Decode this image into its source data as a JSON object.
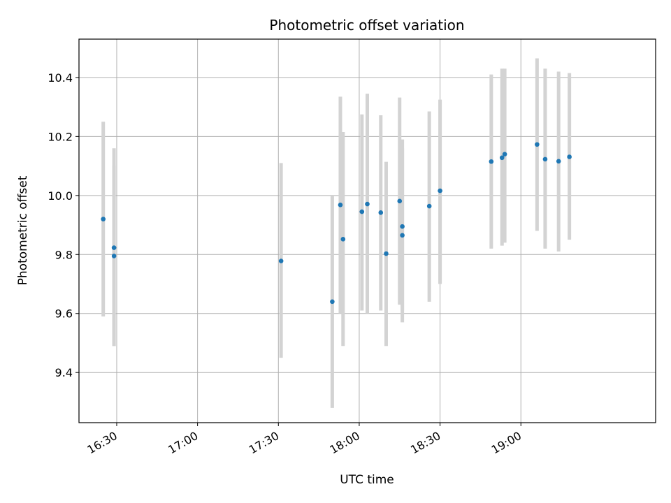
{
  "chart_data": {
    "type": "scatter",
    "title": "Photometric offset variation",
    "xlabel": "UTC time",
    "ylabel": "Photometric offset",
    "x_unit": "time of day (HH:MM, UTC)",
    "xlim": [
      "16:16",
      "19:50"
    ],
    "ylim": [
      9.23,
      10.53
    ],
    "x_ticks": [
      "16:30",
      "17:00",
      "17:30",
      "18:00",
      "18:30",
      "19:00"
    ],
    "y_ticks": [
      9.4,
      9.6,
      9.8,
      10.0,
      10.2,
      10.4
    ],
    "grid": true,
    "legend": "none",
    "marker_color": "#1f77b4",
    "errorbar_color": "#d3d3d3",
    "points": [
      {
        "x": "16:25",
        "y": 9.92,
        "yerr_low": 9.59,
        "yerr_high": 10.25
      },
      {
        "x": "16:29",
        "y": 9.823,
        "yerr_low": 9.49,
        "yerr_high": 10.16
      },
      {
        "x": "16:29",
        "y": 9.795,
        "yerr_low": 9.49,
        "yerr_high": 10.1
      },
      {
        "x": "17:31",
        "y": 9.778,
        "yerr_low": 9.45,
        "yerr_high": 10.11
      },
      {
        "x": "17:50",
        "y": 9.64,
        "yerr_low": 9.28,
        "yerr_high": 10.0
      },
      {
        "x": "17:53",
        "y": 9.968,
        "yerr_low": 9.6,
        "yerr_high": 10.335
      },
      {
        "x": "17:54",
        "y": 9.852,
        "yerr_low": 9.49,
        "yerr_high": 10.215
      },
      {
        "x": "18:01",
        "y": 9.945,
        "yerr_low": 9.61,
        "yerr_high": 10.275
      },
      {
        "x": "18:03",
        "y": 9.971,
        "yerr_low": 9.6,
        "yerr_high": 10.345
      },
      {
        "x": "18:08",
        "y": 9.942,
        "yerr_low": 9.61,
        "yerr_high": 10.272
      },
      {
        "x": "18:10",
        "y": 9.803,
        "yerr_low": 9.49,
        "yerr_high": 10.114
      },
      {
        "x": "18:15",
        "y": 9.981,
        "yerr_low": 9.63,
        "yerr_high": 10.332
      },
      {
        "x": "18:16",
        "y": 9.895,
        "yerr_low": 9.61,
        "yerr_high": 10.19
      },
      {
        "x": "18:16",
        "y": 9.865,
        "yerr_low": 9.57,
        "yerr_high": 10.16
      },
      {
        "x": "18:26",
        "y": 9.964,
        "yerr_low": 9.64,
        "yerr_high": 10.285
      },
      {
        "x": "18:30",
        "y": 10.016,
        "yerr_low": 9.7,
        "yerr_high": 10.325
      },
      {
        "x": "18:49",
        "y": 10.115,
        "yerr_low": 9.82,
        "yerr_high": 10.41
      },
      {
        "x": "18:53",
        "y": 10.128,
        "yerr_low": 9.83,
        "yerr_high": 10.43
      },
      {
        "x": "18:54",
        "y": 10.14,
        "yerr_low": 9.84,
        "yerr_high": 10.43
      },
      {
        "x": "19:06",
        "y": 10.173,
        "yerr_low": 9.88,
        "yerr_high": 10.465
      },
      {
        "x": "19:09",
        "y": 10.123,
        "yerr_low": 9.82,
        "yerr_high": 10.43
      },
      {
        "x": "19:14",
        "y": 10.116,
        "yerr_low": 9.81,
        "yerr_high": 10.42
      },
      {
        "x": "19:18",
        "y": 10.131,
        "yerr_low": 9.85,
        "yerr_high": 10.415
      }
    ]
  }
}
